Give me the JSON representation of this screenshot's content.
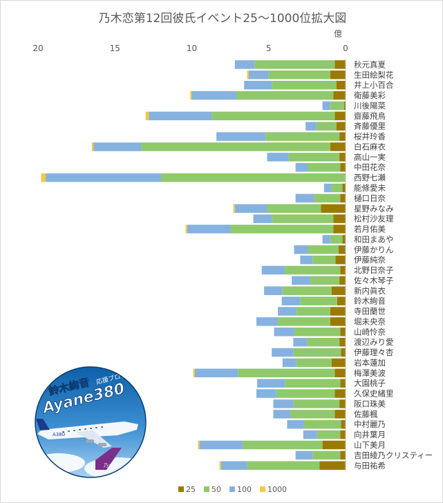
{
  "chart_data": {
    "type": "bar",
    "orientation": "horizontal-stacked",
    "title": "乃木恋第12回彼氏イベント25～1000位拡大図",
    "unit": "億",
    "xlim": [
      0,
      20
    ],
    "x_reversed": true,
    "x_ticks": [
      "20",
      "15",
      "10",
      "5",
      "0"
    ],
    "grid": false,
    "legend_position": "bottom",
    "categories": [
      "秋元真夏",
      "生田絵梨花",
      "井上小百合",
      "衛藤美彩",
      "川後陽菜",
      "齋藤飛鳥",
      "斉藤優里",
      "桜井玲香",
      "白石麻衣",
      "高山一実",
      "中田花奈",
      "西野七瀬",
      "能條愛未",
      "樋口日奈",
      "星野みなみ",
      "松村沙友理",
      "若月佑美",
      "和田まあや",
      "伊藤かりん",
      "伊藤純奈",
      "北野日奈子",
      "佐々木琴子",
      "新内眞衣",
      "鈴木絢音",
      "寺田蘭世",
      "堀未央奈",
      "山崎怜奈",
      "渡辺みり愛",
      "伊藤理々杏",
      "岩本蓮加",
      "梅澤美波",
      "大園桃子",
      "久保史緒里",
      "阪口珠美",
      "佐藤楓",
      "中村麗乃",
      "向井葉月",
      "山下美月",
      "吉田綾乃クリスティー",
      "与田祐希"
    ],
    "series": [
      {
        "name": "25",
        "color": "#9c7a00",
        "values": [
          0.7,
          1.0,
          0.6,
          0.8,
          0.1,
          0.7,
          0.6,
          0.4,
          1.0,
          0.4,
          0.35,
          0.0,
          0.2,
          0.35,
          1.6,
          0.8,
          0.8,
          0.2,
          0.45,
          0.65,
          0.35,
          0.4,
          0.9,
          0.55,
          1.0,
          1.0,
          0.35,
          0.4,
          0.3,
          0.9,
          0.7,
          0.35,
          0.7,
          0.4,
          0.7,
          0.3,
          0.35,
          1.5,
          0.35,
          1.7
        ]
      },
      {
        "name": "50",
        "color": "#8fc96b",
        "values": [
          5.2,
          4.0,
          4.2,
          6.3,
          0.9,
          8.0,
          1.3,
          4.8,
          12.3,
          3.3,
          2.1,
          12.0,
          0.7,
          1.7,
          3.5,
          4.0,
          6.7,
          0.8,
          2.0,
          1.5,
          3.6,
          1.9,
          3.2,
          2.4,
          2.2,
          3.4,
          3.0,
          2.1,
          3.1,
          2.3,
          6.3,
          3.6,
          3.8,
          3.0,
          2.9,
          2.4,
          1.5,
          5.2,
          1.8,
          4.7
        ]
      },
      {
        "name": "100",
        "color": "#86b2df",
        "values": [
          1.3,
          1.3,
          1.8,
          2.9,
          0.5,
          4.1,
          0.7,
          3.2,
          3.1,
          1.4,
          0.8,
          7.5,
          0.5,
          1.2,
          2.1,
          1.2,
          2.8,
          0.5,
          0.9,
          0.8,
          1.5,
          1.2,
          1.2,
          1.2,
          1.2,
          1.4,
          1.3,
          0.9,
          1.4,
          0.9,
          2.8,
          1.8,
          1.3,
          1.3,
          1.1,
          1.1,
          0.9,
          2.8,
          1.1,
          1.7
        ]
      },
      {
        "name": "1000",
        "color": "#f4c842",
        "values": [
          0.0,
          0.1,
          0.0,
          0.1,
          0.0,
          0.2,
          0.0,
          0.0,
          0.1,
          0.0,
          0.0,
          0.3,
          0.0,
          0.0,
          0.1,
          0.0,
          0.1,
          0.0,
          0.0,
          0.0,
          0.0,
          0.0,
          0.0,
          0.0,
          0.0,
          0.0,
          0.0,
          0.0,
          0.0,
          0.0,
          0.1,
          0.0,
          0.0,
          0.0,
          0.0,
          0.0,
          0.0,
          0.1,
          0.0,
          0.1
        ]
      }
    ]
  },
  "badge": {
    "title": "鈴木絢音",
    "subtitle": "応援ブログ",
    "brand": "Ayane380",
    "plane_mark": "A380",
    "tail_text": "乃木坂"
  }
}
